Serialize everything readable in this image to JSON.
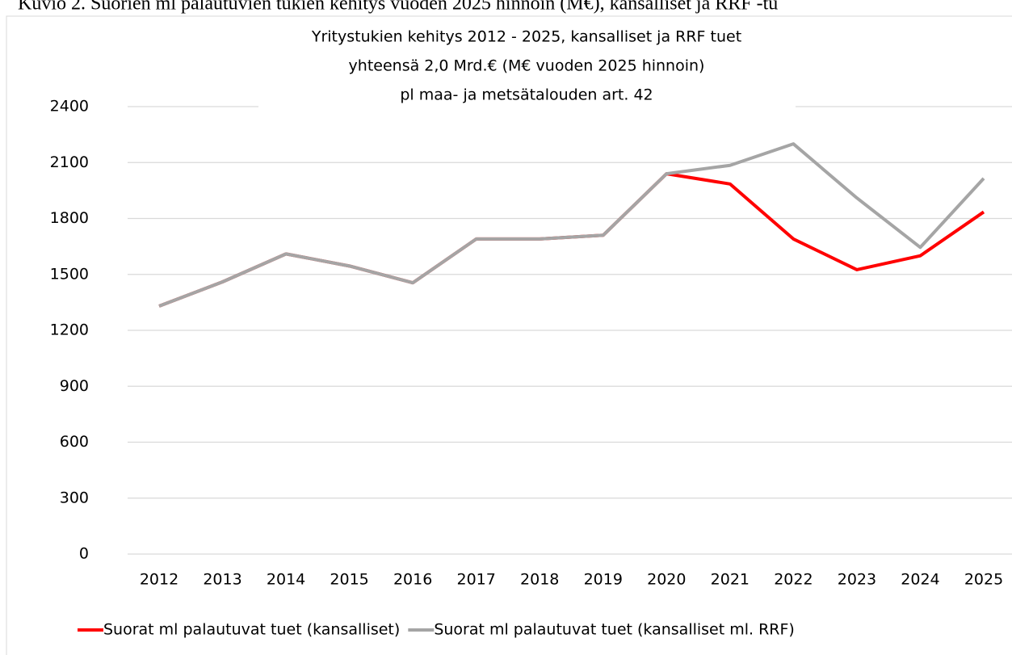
{
  "caption": "Kuvio 2. Suorien ml palautuvien tukien kehitys vuoden 2025 hinnoin (M€), kansalliset ja RRF -tu",
  "chart_data": {
    "type": "line",
    "title": [
      "Yritystukien kehitys 2012 - 2025, kansalliset ja RRF tuet",
      "yhteensä 2,0 Mrd.€ (M€ vuoden 2025 hinnoin)",
      "pl maa- ja metsätalouden art. 42"
    ],
    "categories": [
      "2012",
      "2013",
      "2014",
      "2015",
      "2016",
      "2017",
      "2018",
      "2019",
      "2020",
      "2021",
      "2022",
      "2023",
      "2024",
      "2025"
    ],
    "series": [
      {
        "name": "Suorat ml palautuvat tuet (kansalliset)",
        "color": "#ff0000",
        "values": [
          1330,
          1460,
          1610,
          1545,
          1455,
          1690,
          1690,
          1710,
          2040,
          1985,
          1690,
          1525,
          1600,
          1835
        ]
      },
      {
        "name": "Suorat ml palautuvat tuet (kansalliset ml. RRF)",
        "color": "#a5a5a5",
        "values": [
          1330,
          1460,
          1610,
          1545,
          1455,
          1690,
          1690,
          1710,
          2040,
          2085,
          2200,
          1910,
          1645,
          2015
        ]
      }
    ],
    "ylim": [
      0,
      2400
    ],
    "yticks": [
      0,
      300,
      600,
      900,
      1200,
      1500,
      1800,
      2100,
      2400
    ],
    "grid": true,
    "legend": "bottom"
  }
}
